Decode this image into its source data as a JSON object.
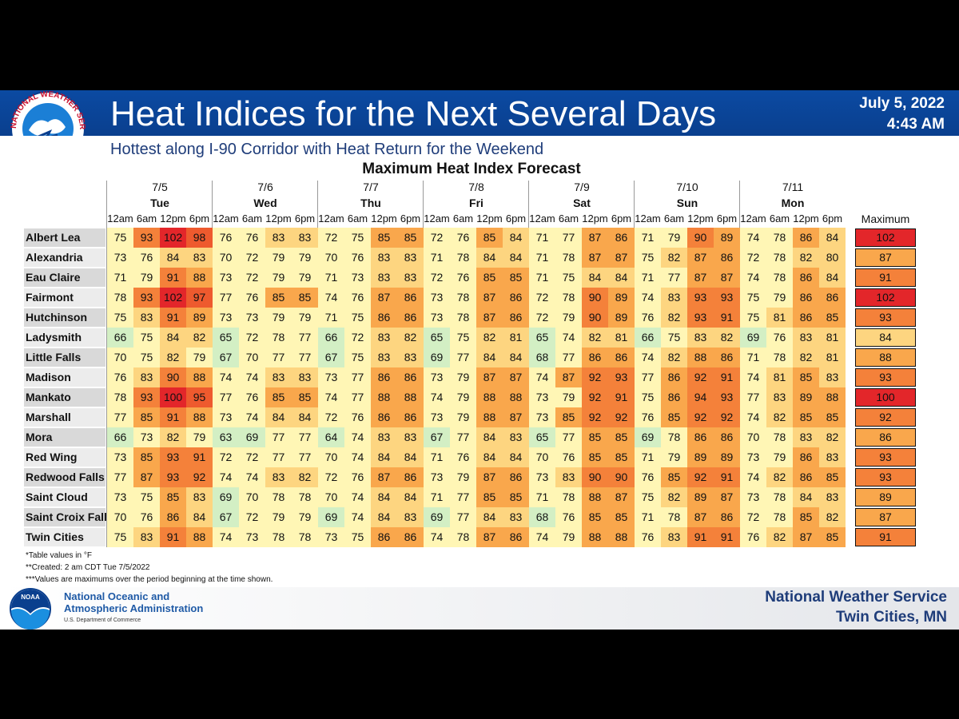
{
  "header": {
    "logo_text": "NATIONAL WEATHER SERVICE",
    "title": "Heat Indices for the Next Several Days",
    "subtitle": "Hottest along I-90 Corridor with Heat Return for the Weekend",
    "date": "July 5, 2022",
    "time": "4:43 AM"
  },
  "table": {
    "title": "Maximum Heat Index Forecast",
    "days": [
      {
        "date": "7/5",
        "day": "Tue"
      },
      {
        "date": "7/6",
        "day": "Wed"
      },
      {
        "date": "7/7",
        "day": "Thu"
      },
      {
        "date": "7/8",
        "day": "Fri"
      },
      {
        "date": "7/9",
        "day": "Sat"
      },
      {
        "date": "7/10",
        "day": "Sun"
      },
      {
        "date": "7/11",
        "day": "Mon"
      }
    ],
    "times": [
      "12am",
      "6am",
      "12pm",
      "6pm"
    ],
    "max_header": "Maximum",
    "rows": [
      {
        "name": "Albert Lea",
        "values": [
          75,
          93,
          102,
          98,
          76,
          76,
          83,
          83,
          72,
          75,
          85,
          85,
          72,
          76,
          85,
          84,
          71,
          77,
          87,
          86,
          71,
          79,
          90,
          89,
          74,
          78,
          86,
          84
        ],
        "max": 102
      },
      {
        "name": "Alexandria",
        "values": [
          73,
          76,
          84,
          83,
          70,
          72,
          79,
          79,
          70,
          76,
          83,
          83,
          71,
          78,
          84,
          84,
          71,
          78,
          87,
          87,
          75,
          82,
          87,
          86,
          72,
          78,
          82,
          80
        ],
        "max": 87
      },
      {
        "name": "Eau Claire",
        "values": [
          71,
          79,
          91,
          88,
          73,
          72,
          79,
          79,
          71,
          73,
          83,
          83,
          72,
          76,
          85,
          85,
          71,
          75,
          84,
          84,
          71,
          77,
          87,
          87,
          74,
          78,
          86,
          84
        ],
        "max": 91
      },
      {
        "name": "Fairmont",
        "values": [
          78,
          93,
          102,
          97,
          77,
          76,
          85,
          85,
          74,
          76,
          87,
          86,
          73,
          78,
          87,
          86,
          72,
          78,
          90,
          89,
          74,
          83,
          93,
          93,
          75,
          79,
          86,
          86
        ],
        "max": 102
      },
      {
        "name": "Hutchinson",
        "values": [
          75,
          83,
          91,
          89,
          73,
          73,
          79,
          79,
          71,
          75,
          86,
          86,
          73,
          78,
          87,
          86,
          72,
          79,
          90,
          89,
          76,
          82,
          93,
          91,
          75,
          81,
          86,
          85
        ],
        "max": 93
      },
      {
        "name": "Ladysmith",
        "values": [
          66,
          75,
          84,
          82,
          65,
          72,
          78,
          77,
          66,
          72,
          83,
          82,
          65,
          75,
          82,
          81,
          65,
          74,
          82,
          81,
          66,
          75,
          83,
          82,
          69,
          76,
          83,
          81
        ],
        "max": 84
      },
      {
        "name": "Little Falls",
        "values": [
          70,
          75,
          82,
          79,
          67,
          70,
          77,
          77,
          67,
          75,
          83,
          83,
          69,
          77,
          84,
          84,
          68,
          77,
          86,
          86,
          74,
          82,
          88,
          86,
          71,
          78,
          82,
          81
        ],
        "max": 88
      },
      {
        "name": "Madison",
        "values": [
          76,
          83,
          90,
          88,
          74,
          74,
          83,
          83,
          73,
          77,
          86,
          86,
          73,
          79,
          87,
          87,
          74,
          87,
          92,
          93,
          77,
          86,
          92,
          91,
          74,
          81,
          85,
          83
        ],
        "max": 93
      },
      {
        "name": "Mankato",
        "values": [
          78,
          93,
          100,
          95,
          77,
          76,
          85,
          85,
          74,
          77,
          88,
          88,
          74,
          79,
          88,
          88,
          73,
          79,
          92,
          91,
          75,
          86,
          94,
          93,
          77,
          83,
          89,
          88
        ],
        "max": 100
      },
      {
        "name": "Marshall",
        "values": [
          77,
          85,
          91,
          88,
          73,
          74,
          84,
          84,
          72,
          76,
          86,
          86,
          73,
          79,
          88,
          87,
          73,
          85,
          92,
          92,
          76,
          85,
          92,
          92,
          74,
          82,
          85,
          85
        ],
        "max": 92
      },
      {
        "name": "Mora",
        "values": [
          66,
          73,
          82,
          79,
          63,
          69,
          77,
          77,
          64,
          74,
          83,
          83,
          67,
          77,
          84,
          83,
          65,
          77,
          85,
          85,
          69,
          78,
          86,
          86,
          70,
          78,
          83,
          82
        ],
        "max": 86
      },
      {
        "name": "Red Wing",
        "values": [
          73,
          85,
          93,
          91,
          72,
          72,
          77,
          77,
          70,
          74,
          84,
          84,
          71,
          76,
          84,
          84,
          70,
          76,
          85,
          85,
          71,
          79,
          89,
          89,
          73,
          79,
          86,
          83
        ],
        "max": 93
      },
      {
        "name": "Redwood Falls",
        "values": [
          77,
          87,
          93,
          92,
          74,
          74,
          83,
          82,
          72,
          76,
          87,
          86,
          73,
          79,
          87,
          86,
          73,
          83,
          90,
          90,
          76,
          85,
          92,
          91,
          74,
          82,
          86,
          85
        ],
        "max": 93
      },
      {
        "name": "Saint Cloud",
        "values": [
          73,
          75,
          85,
          83,
          69,
          70,
          78,
          78,
          70,
          74,
          84,
          84,
          71,
          77,
          85,
          85,
          71,
          78,
          88,
          87,
          75,
          82,
          89,
          87,
          73,
          78,
          84,
          83
        ],
        "max": 89
      },
      {
        "name": "Saint Croix Falls",
        "values": [
          70,
          76,
          86,
          84,
          67,
          72,
          79,
          79,
          69,
          74,
          84,
          83,
          69,
          77,
          84,
          83,
          68,
          76,
          85,
          85,
          71,
          78,
          87,
          86,
          72,
          78,
          85,
          82
        ],
        "max": 87
      },
      {
        "name": "Twin Cities",
        "values": [
          75,
          83,
          91,
          88,
          74,
          73,
          78,
          78,
          73,
          75,
          86,
          86,
          74,
          78,
          87,
          86,
          74,
          79,
          88,
          88,
          76,
          83,
          91,
          91,
          76,
          82,
          87,
          85
        ],
        "max": 91
      }
    ]
  },
  "notes": [
    "*Table values in °F",
    "**Created: 2 am CDT Tue 7/5/2022",
    "***Values are maximums over the period beginning at the time shown."
  ],
  "footer": {
    "noaa_logo": "NOAA",
    "noaa_line1": "National Oceanic and",
    "noaa_line2": "Atmospheric Administration",
    "noaa_dept": "U.S. Department of Commerce",
    "nws": "National Weather Service",
    "location": "Twin Cities, MN"
  }
}
